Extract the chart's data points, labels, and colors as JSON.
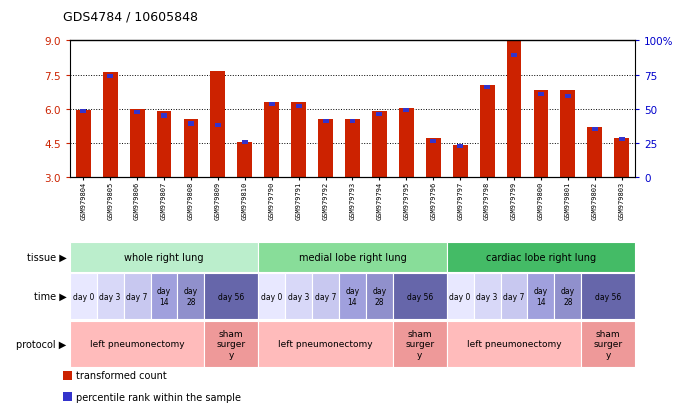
{
  "title": "GDS4784 / 10605848",
  "samples": [
    "GSM979804",
    "GSM979805",
    "GSM979806",
    "GSM979807",
    "GSM979808",
    "GSM979809",
    "GSM979810",
    "GSM979790",
    "GSM979791",
    "GSM979792",
    "GSM979793",
    "GSM979794",
    "GSM979795",
    "GSM979796",
    "GSM979797",
    "GSM979798",
    "GSM979799",
    "GSM979800",
    "GSM979801",
    "GSM979802",
    "GSM979803"
  ],
  "red_values": [
    5.95,
    7.6,
    6.0,
    5.9,
    5.55,
    7.65,
    4.55,
    6.3,
    6.3,
    5.55,
    5.55,
    5.9,
    6.05,
    4.7,
    4.4,
    7.05,
    9.0,
    6.8,
    6.8,
    5.2,
    4.7
  ],
  "blue_values": [
    5.9,
    7.45,
    5.85,
    5.7,
    5.35,
    5.3,
    4.55,
    6.2,
    6.1,
    5.45,
    5.45,
    5.75,
    5.95,
    4.6,
    4.35,
    6.95,
    8.35,
    6.65,
    6.55,
    5.1,
    4.65
  ],
  "ylim": [
    3,
    9
  ],
  "yticks_left": [
    3,
    4.5,
    6,
    7.5,
    9
  ],
  "ytick_right_labels": [
    "0",
    "25",
    "50",
    "75",
    "100%"
  ],
  "bar_color": "#cc2200",
  "blue_color": "#3333cc",
  "tissue_groups": [
    {
      "label": "whole right lung",
      "start": 0,
      "end": 7,
      "color": "#bbeecc"
    },
    {
      "label": "medial lobe right lung",
      "start": 7,
      "end": 14,
      "color": "#88dd99"
    },
    {
      "label": "cardiac lobe right lung",
      "start": 14,
      "end": 21,
      "color": "#44bb66"
    }
  ],
  "time_spans": [
    {
      "label": "day 0",
      "start": 0,
      "end": 1,
      "color": "#e8e8ff"
    },
    {
      "label": "day 3",
      "start": 1,
      "end": 2,
      "color": "#d8d8f8"
    },
    {
      "label": "day 7",
      "start": 2,
      "end": 3,
      "color": "#c8c8f0"
    },
    {
      "label": "day\n14",
      "start": 3,
      "end": 4,
      "color": "#a0a0dd"
    },
    {
      "label": "day\n28",
      "start": 4,
      "end": 5,
      "color": "#9090cc"
    },
    {
      "label": "day 56",
      "start": 5,
      "end": 7,
      "color": "#6666aa"
    },
    {
      "label": "day 0",
      "start": 7,
      "end": 8,
      "color": "#e8e8ff"
    },
    {
      "label": "day 3",
      "start": 8,
      "end": 9,
      "color": "#d8d8f8"
    },
    {
      "label": "day 7",
      "start": 9,
      "end": 10,
      "color": "#c8c8f0"
    },
    {
      "label": "day\n14",
      "start": 10,
      "end": 11,
      "color": "#a0a0dd"
    },
    {
      "label": "day\n28",
      "start": 11,
      "end": 12,
      "color": "#9090cc"
    },
    {
      "label": "day 56",
      "start": 12,
      "end": 14,
      "color": "#6666aa"
    },
    {
      "label": "day 0",
      "start": 14,
      "end": 15,
      "color": "#e8e8ff"
    },
    {
      "label": "day 3",
      "start": 15,
      "end": 16,
      "color": "#d8d8f8"
    },
    {
      "label": "day 7",
      "start": 16,
      "end": 17,
      "color": "#c8c8f0"
    },
    {
      "label": "day\n14",
      "start": 17,
      "end": 18,
      "color": "#a0a0dd"
    },
    {
      "label": "day\n28",
      "start": 18,
      "end": 19,
      "color": "#9090cc"
    },
    {
      "label": "day 56",
      "start": 19,
      "end": 21,
      "color": "#6666aa"
    }
  ],
  "protocol_spans": [
    {
      "label": "left pneumonectomy",
      "start": 0,
      "end": 5,
      "color": "#ffbbbb"
    },
    {
      "label": "sham\nsurger\ny",
      "start": 5,
      "end": 7,
      "color": "#ee9999"
    },
    {
      "label": "left pneumonectomy",
      "start": 7,
      "end": 12,
      "color": "#ffbbbb"
    },
    {
      "label": "sham\nsurger\ny",
      "start": 12,
      "end": 14,
      "color": "#ee9999"
    },
    {
      "label": "left pneumonectomy",
      "start": 14,
      "end": 19,
      "color": "#ffbbbb"
    },
    {
      "label": "sham\nsurger\ny",
      "start": 19,
      "end": 21,
      "color": "#ee9999"
    }
  ],
  "legend_items": [
    {
      "color": "#cc2200",
      "label": "transformed count"
    },
    {
      "color": "#3333cc",
      "label": "percentile rank within the sample"
    }
  ],
  "row_labels": [
    "tissue",
    "time",
    "protocol"
  ]
}
